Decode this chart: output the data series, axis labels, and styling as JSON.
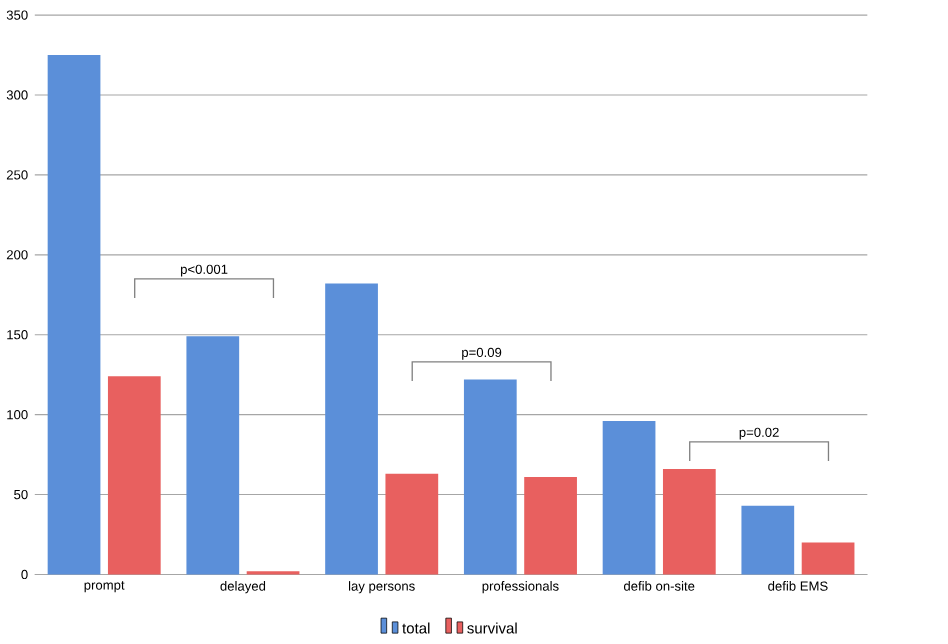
{
  "chart_data": {
    "type": "bar",
    "categories": [
      "prompt",
      "delayed",
      "lay persons",
      "professionals",
      "defib on-site",
      "defib EMS"
    ],
    "series": [
      {
        "name": "total",
        "color": "#5b8fd9",
        "values": [
          325,
          149,
          182,
          122,
          96,
          43
        ]
      },
      {
        "name": "survival",
        "color": "#e8605f",
        "values": [
          124,
          2,
          63,
          61,
          66,
          20
        ]
      }
    ],
    "ylim": [
      0,
      350
    ],
    "yticks": [
      0,
      50,
      100,
      150,
      200,
      250,
      300,
      350
    ],
    "grid": "y",
    "legend": "bottom",
    "annotations": [
      "p<0.001",
      "p=0.09",
      "p=0.02"
    ]
  }
}
